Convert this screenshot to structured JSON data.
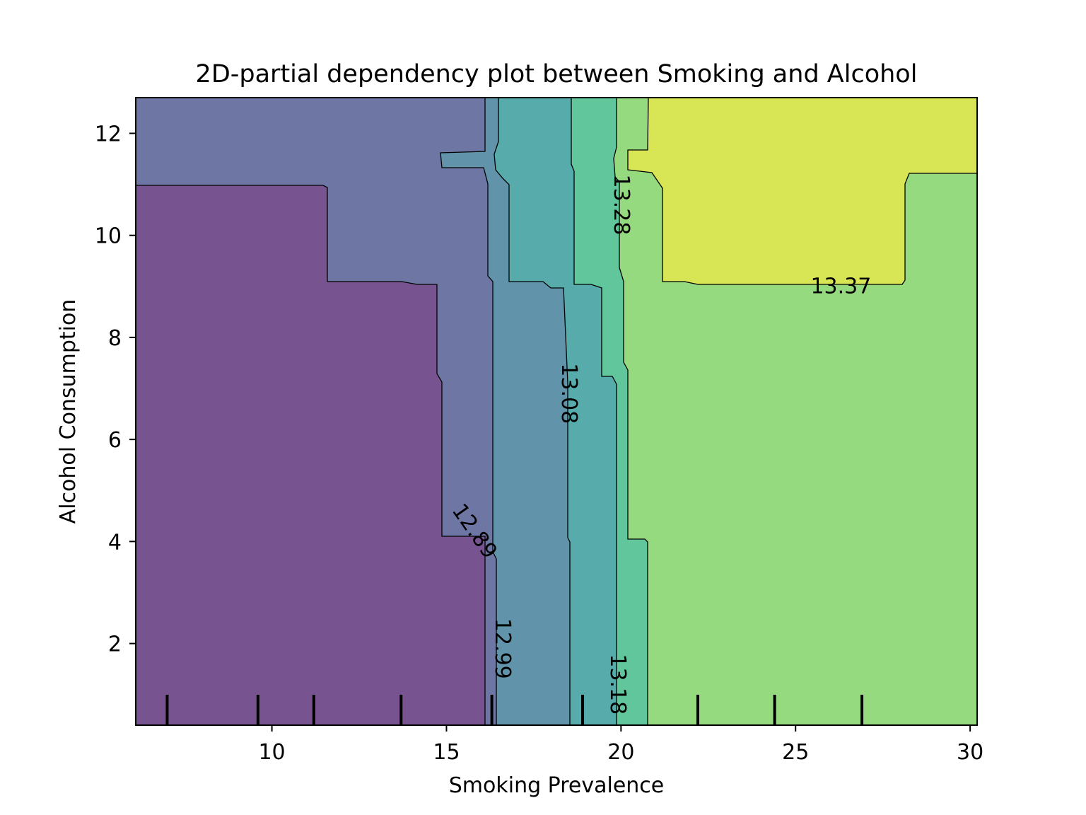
{
  "chart_data": {
    "type": "heatmap",
    "subtype": "filled-contour",
    "title": "2D-partial dependency plot between Smoking and Alcohol",
    "xlabel": "Smoking Prevalence",
    "ylabel": "Alcohol Consumption",
    "xlim": [
      6.1,
      30.2
    ],
    "ylim": [
      0.4,
      12.7
    ],
    "xticks": [
      10,
      15,
      20,
      25,
      30
    ],
    "yticks": [
      2,
      4,
      6,
      8,
      10,
      12
    ],
    "grid": false,
    "levels": [
      12.89,
      12.99,
      13.08,
      13.18,
      13.28,
      13.37
    ],
    "regions": [
      {
        "range": "< 12.89",
        "color": "#77548f"
      },
      {
        "range": "12.89 – 12.99",
        "color": "#6e77a4"
      },
      {
        "range": "12.99 – 13.08",
        "color": "#6194aa"
      },
      {
        "range": "13.08 – 13.18",
        "color": "#58abab"
      },
      {
        "range": "13.18 – 13.28",
        "color": "#62c69c"
      },
      {
        "range": "13.28 – 13.37",
        "color": "#96da7f"
      },
      {
        "range": "> 13.37",
        "color": "#d8e656"
      }
    ],
    "contour_labels": [
      {
        "text": "12.89",
        "x": 15.8,
        "y": 4.2
      },
      {
        "text": "12.99",
        "x": 16.6,
        "y": 1.9
      },
      {
        "text": "13.08",
        "x": 18.5,
        "y": 6.9
      },
      {
        "text": "13.18",
        "x": 19.9,
        "y": 1.2
      },
      {
        "text": "13.28",
        "x": 20.0,
        "y": 10.6
      },
      {
        "text": "13.37",
        "x": 26.3,
        "y": 9.0
      }
    ],
    "rug_x": [
      7.0,
      9.6,
      11.2,
      13.7,
      16.3,
      18.9,
      22.2,
      24.4,
      26.9
    ]
  }
}
